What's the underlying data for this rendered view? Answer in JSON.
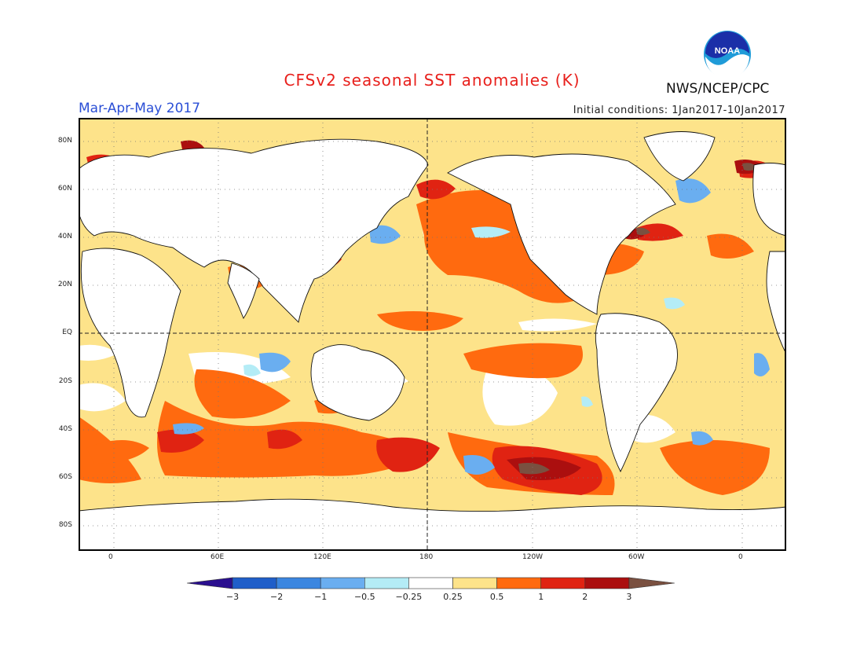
{
  "header": {
    "title": "CFSv2 seasonal SST anomalies (K)",
    "season": "Mar-Apr-May 2017",
    "initial_conditions": "Initial conditions: 1Jan2017-10Jan2017",
    "agency": "NWS/NCEP/CPC",
    "logo_text": "NOAA"
  },
  "map": {
    "lon_tick_labels": [
      "0",
      "60E",
      "120E",
      "180",
      "120W",
      "60W",
      "0"
    ],
    "lat_tick_labels": [
      "80N",
      "60N",
      "40N",
      "20N",
      "EQ",
      "20S",
      "40S",
      "60S",
      "80S"
    ]
  },
  "colorbar": {
    "labels": [
      "-3",
      "-2",
      "-1",
      "-0.5",
      "-0.25",
      "0.25",
      "0.5",
      "1",
      "2",
      "3"
    ],
    "colors": [
      "#2a0f8f",
      "#1f5ec9",
      "#3b86e0",
      "#6aaef0",
      "#b4ecf6",
      "#ffffff",
      "#fde38a",
      "#ff6a0f",
      "#e02312",
      "#ab0f0f",
      "#7a5040"
    ]
  }
}
